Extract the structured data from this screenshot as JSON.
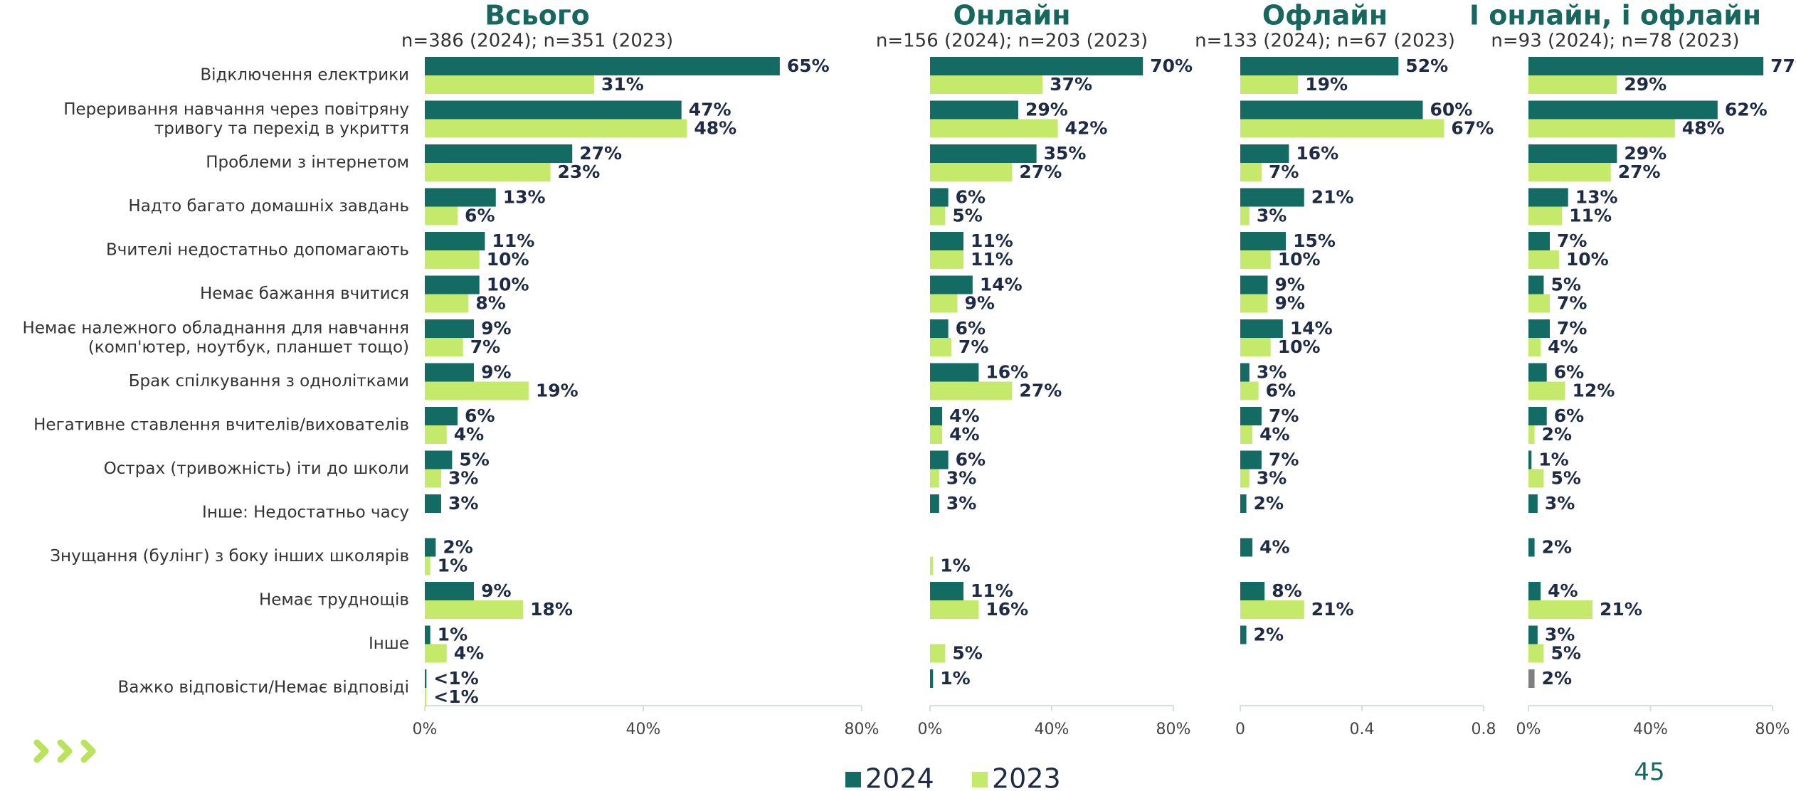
{
  "chart_data": [
    {
      "type": "bar",
      "title": "Всього",
      "subtitle": "n=386 (2024); n=351 (2023)",
      "categories": [
        "Відключення електрики",
        "Переривання навчання через повітряну\nтривогу та перехід в укриття",
        "Проблеми з інтернетом",
        "Надто багато домашніх завдань",
        "Вчителі недостатньо допомагають",
        "Немає бажання вчитися",
        "Немає належного обладнання для навчання\n(комп'ютер, ноутбук, планшет тощо)",
        "Брак спілкування з однолітками",
        "Негативне ставлення вчителів/вихователів",
        "Острах (тривожність) іти до школи",
        "Інше: Недостатньо часу",
        "Знущання (булінг) з боку інших школярів",
        "Немає труднощів",
        "Інше",
        "Важко відповісти/Немає відповіді"
      ],
      "xlim": [
        0,
        80
      ],
      "xticks": [
        {
          "value": 0,
          "label": "0%"
        },
        {
          "value": 40,
          "label": "40%"
        },
        {
          "value": 80,
          "label": "80%"
        }
      ],
      "series": [
        {
          "name": "2024",
          "color": "#136b63",
          "values": [
            65,
            47,
            27,
            13,
            11,
            10,
            9,
            9,
            6,
            5,
            3,
            2,
            9,
            1,
            0.3
          ],
          "value_labels": [
            "65%",
            "47%",
            "27%",
            "13%",
            "11%",
            "10%",
            "9%",
            "9%",
            "6%",
            "5%",
            "3%",
            "2%",
            "9%",
            "1%",
            "<1%"
          ]
        },
        {
          "name": "2023",
          "color": "#c5e96b",
          "values": [
            31,
            48,
            23,
            6,
            10,
            8,
            7,
            19,
            4,
            3,
            null,
            1,
            18,
            4,
            0.3
          ],
          "value_labels": [
            "31%",
            "48%",
            "23%",
            "6%",
            "10%",
            "8%",
            "7%",
            "19%",
            "4%",
            "3%",
            null,
            "1%",
            "18%",
            "4%",
            "<1%"
          ]
        }
      ]
    },
    {
      "type": "bar",
      "title": "Онлайн",
      "subtitle": "n=156 (2024); n=203 (2023)",
      "xlim": [
        0,
        80
      ],
      "xticks": [
        {
          "value": 0,
          "label": "0%"
        },
        {
          "value": 40,
          "label": "40%"
        },
        {
          "value": 80,
          "label": "80%"
        }
      ],
      "series": [
        {
          "color": "#136b63",
          "values": [
            70,
            29,
            35,
            6,
            11,
            14,
            6,
            16,
            4,
            6,
            3,
            null,
            11,
            null,
            1
          ],
          "value_labels": [
            "70%",
            "29%",
            "35%",
            "6%",
            "11%",
            "14%",
            "6%",
            "16%",
            "4%",
            "6%",
            "3%",
            null,
            "11%",
            null,
            "1%"
          ]
        },
        {
          "color": "#c5e96b",
          "values": [
            37,
            42,
            27,
            5,
            11,
            9,
            7,
            27,
            4,
            3,
            null,
            1,
            16,
            5,
            null
          ],
          "value_labels": [
            "37%",
            "42%",
            "27%",
            "5%",
            "11%",
            "9%",
            "7%",
            "27%",
            "4%",
            "3%",
            null,
            "1%",
            "16%",
            "5%",
            null
          ]
        }
      ]
    },
    {
      "type": "bar",
      "title": "Офлайн",
      "subtitle": "n=133 (2024); n=67 (2023)",
      "xlim": [
        0,
        0.8
      ],
      "xticks": [
        0,
        0.4,
        0.8
      ],
      "series": [
        {
          "color": "#136b63",
          "values": [
            0.52,
            0.6,
            0.16,
            0.21,
            0.15,
            0.09,
            0.14,
            0.03,
            0.07,
            0.07,
            0.02,
            0.04,
            0.08,
            0.02,
            null
          ],
          "value_labels": [
            "52%",
            "60%",
            "16%",
            "21%",
            "15%",
            "9%",
            "14%",
            "3%",
            "7%",
            "7%",
            "2%",
            "4%",
            "8%",
            "2%",
            null
          ]
        },
        {
          "color": "#c5e96b",
          "values": [
            0.19,
            0.67,
            0.07,
            0.03,
            0.1,
            0.09,
            0.1,
            0.06,
            0.04,
            0.03,
            null,
            null,
            0.21,
            null,
            null
          ],
          "value_labels": [
            "19%",
            "67%",
            "7%",
            "3%",
            "10%",
            "9%",
            "10%",
            "6%",
            "4%",
            "3%",
            null,
            null,
            "21%",
            null,
            null
          ]
        }
      ]
    },
    {
      "type": "bar",
      "title": "І онлайн, і офлайн",
      "subtitle": "n=93 (2024); n=78 (2023)",
      "xlim": [
        0,
        80
      ],
      "xticks": [
        {
          "value": 0,
          "label": "0%"
        },
        {
          "value": 40,
          "label": "40%"
        },
        {
          "value": 80,
          "label": "80%"
        }
      ],
      "series": [
        {
          "color": "#136b63",
          "colors": [
            null,
            null,
            null,
            null,
            null,
            null,
            null,
            null,
            null,
            null,
            null,
            null,
            null,
            null,
            "#7f7f7f"
          ],
          "values": [
            77,
            62,
            29,
            13,
            7,
            5,
            7,
            6,
            6,
            1,
            3,
            2,
            4,
            3,
            2
          ],
          "value_labels": [
            "77%",
            "62%",
            "29%",
            "13%",
            "7%",
            "5%",
            "7%",
            "6%",
            "6%",
            "1%",
            "3%",
            "2%",
            "4%",
            "3%",
            "2%"
          ]
        },
        {
          "color": "#c5e96b",
          "values": [
            29,
            48,
            27,
            11,
            10,
            7,
            4,
            12,
            2,
            5,
            null,
            null,
            21,
            5,
            null
          ],
          "value_labels": [
            "29%",
            "48%",
            "27%",
            "11%",
            "10%",
            "7%",
            "4%",
            "12%",
            "2%",
            "5%",
            null,
            null,
            "21%",
            "5%",
            null
          ]
        }
      ]
    }
  ],
  "page_number": "45"
}
